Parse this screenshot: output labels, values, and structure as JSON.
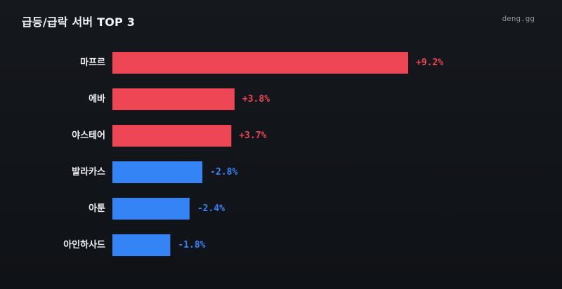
{
  "header": {
    "title": "급등/급락 서버 TOP 3",
    "brand": "deng.gg"
  },
  "colors": {
    "up": "#ef4656",
    "down": "#3584f5"
  },
  "chart_data": {
    "type": "bar",
    "orientation": "horizontal",
    "title": "급등/급락 서버 TOP 3",
    "xlabel": "",
    "ylabel": "",
    "categories": [
      "마프르",
      "에바",
      "야스테어",
      "발라카스",
      "아툰",
      "아인하사드"
    ],
    "values": [
      9.2,
      3.8,
      3.7,
      -2.8,
      -2.4,
      -1.8
    ],
    "value_labels": [
      "+9.2%",
      "+3.8%",
      "+3.7%",
      "-2.8%",
      "-2.4%",
      "-1.8%"
    ],
    "bar_colors": [
      "#ef4656",
      "#ef4656",
      "#ef4656",
      "#3584f5",
      "#3584f5",
      "#3584f5"
    ],
    "grid": false,
    "legend": "none"
  }
}
